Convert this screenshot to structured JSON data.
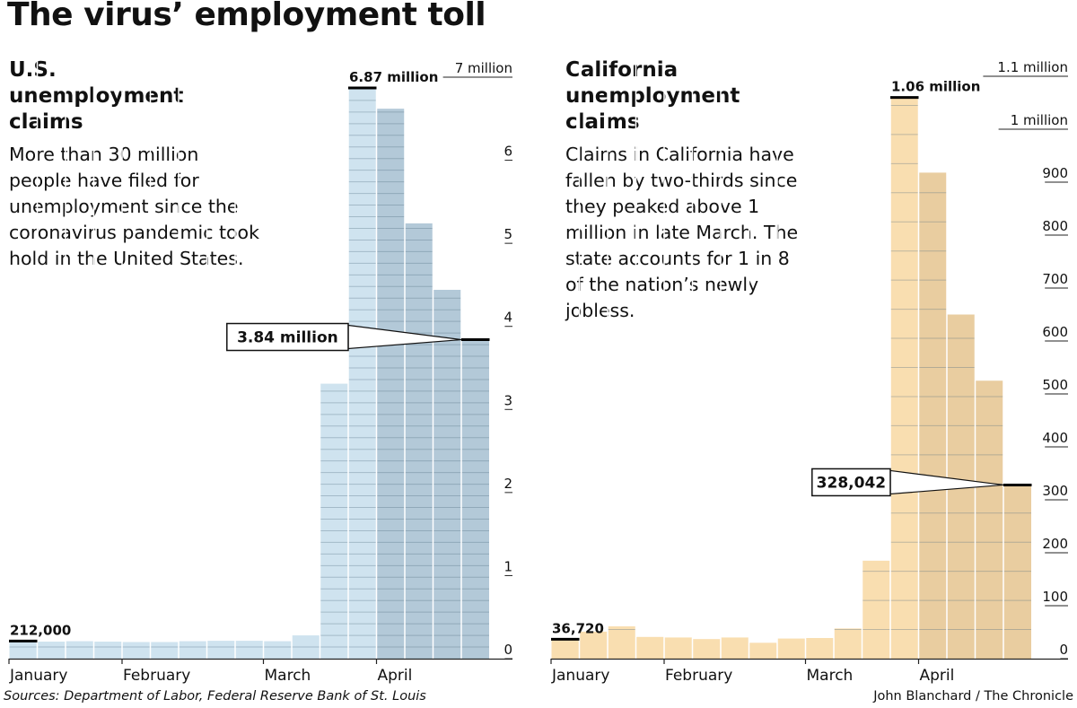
{
  "title": "The virus’ employment toll",
  "footer": {
    "source": "Sources: Department of Labor, Federal Reserve Bank of St. Louis",
    "credit": "John Blanchard / The Chronicle"
  },
  "colors": {
    "us_light": "#cfe3ef",
    "us_dark": "#b3c9d8",
    "ca_light": "#f9deb0",
    "ca_dark": "#e9cda0"
  },
  "chart_data": [
    {
      "type": "bar",
      "id": "us",
      "title": "U.S. unemployment claims",
      "description": "More than 30 million people have filed for unemployment since the coronavirus pandemic took hold in the United States.",
      "unit": "million",
      "ylim": [
        0,
        7
      ],
      "yticks": [
        {
          "value": 0,
          "label": "0"
        },
        {
          "value": 1,
          "label": "1"
        },
        {
          "value": 2,
          "label": "2"
        },
        {
          "value": 3,
          "label": "3"
        },
        {
          "value": 4,
          "label": "4"
        },
        {
          "value": 5,
          "label": "5"
        },
        {
          "value": 6,
          "label": "6"
        },
        {
          "value": 7,
          "label": "7 million"
        }
      ],
      "months": [
        {
          "label": "January",
          "bar": 0
        },
        {
          "label": "February",
          "bar": 4
        },
        {
          "label": "March",
          "bar": 9
        },
        {
          "label": "April",
          "bar": 13
        }
      ],
      "values": [
        0.212,
        0.205,
        0.21,
        0.205,
        0.2,
        0.2,
        0.21,
        0.215,
        0.215,
        0.21,
        0.28,
        3.31,
        6.87,
        6.62,
        5.24,
        4.44,
        3.84
      ],
      "dark_from": 13,
      "annotations": [
        {
          "bar": 0,
          "label": "212,000",
          "position": "above"
        },
        {
          "bar": 12,
          "label": "6.87 million",
          "position": "above"
        },
        {
          "bar": 16,
          "label": "3.84 million",
          "position": "callout"
        }
      ]
    },
    {
      "type": "bar",
      "id": "ca",
      "title": "California unemployment claims",
      "description": "Claims in California have fallen by two-thirds since they peaked above 1 million in late March. The state accounts for 1 in 8 of the nation’s newly jobless.",
      "unit": "thousand",
      "ylim": [
        0,
        1100
      ],
      "yticks": [
        {
          "value": 0,
          "label": "0"
        },
        {
          "value": 100,
          "label": "100"
        },
        {
          "value": 200,
          "label": "200"
        },
        {
          "value": 300,
          "label": "300"
        },
        {
          "value": 400,
          "label": "400"
        },
        {
          "value": 500,
          "label": "500"
        },
        {
          "value": 600,
          "label": "600"
        },
        {
          "value": 700,
          "label": "700"
        },
        {
          "value": 800,
          "label": "800"
        },
        {
          "value": 900,
          "label": "900"
        },
        {
          "value": 1000,
          "label": "1 million"
        },
        {
          "value": 1100,
          "label": "1.1 million"
        }
      ],
      "months": [
        {
          "label": "January",
          "bar": 0
        },
        {
          "label": "February",
          "bar": 4
        },
        {
          "label": "March",
          "bar": 9
        },
        {
          "label": "April",
          "bar": 13
        }
      ],
      "values": [
        36.72,
        51,
        61,
        41,
        40,
        37,
        40,
        30,
        38,
        39,
        57,
        185,
        1060,
        918,
        650,
        525,
        328.042
      ],
      "dark_from": 13,
      "annotations": [
        {
          "bar": 0,
          "label": "36,720",
          "position": "above"
        },
        {
          "bar": 12,
          "label": "1.06 million",
          "position": "above"
        },
        {
          "bar": 16,
          "label": "328,042",
          "position": "callout"
        }
      ]
    }
  ]
}
